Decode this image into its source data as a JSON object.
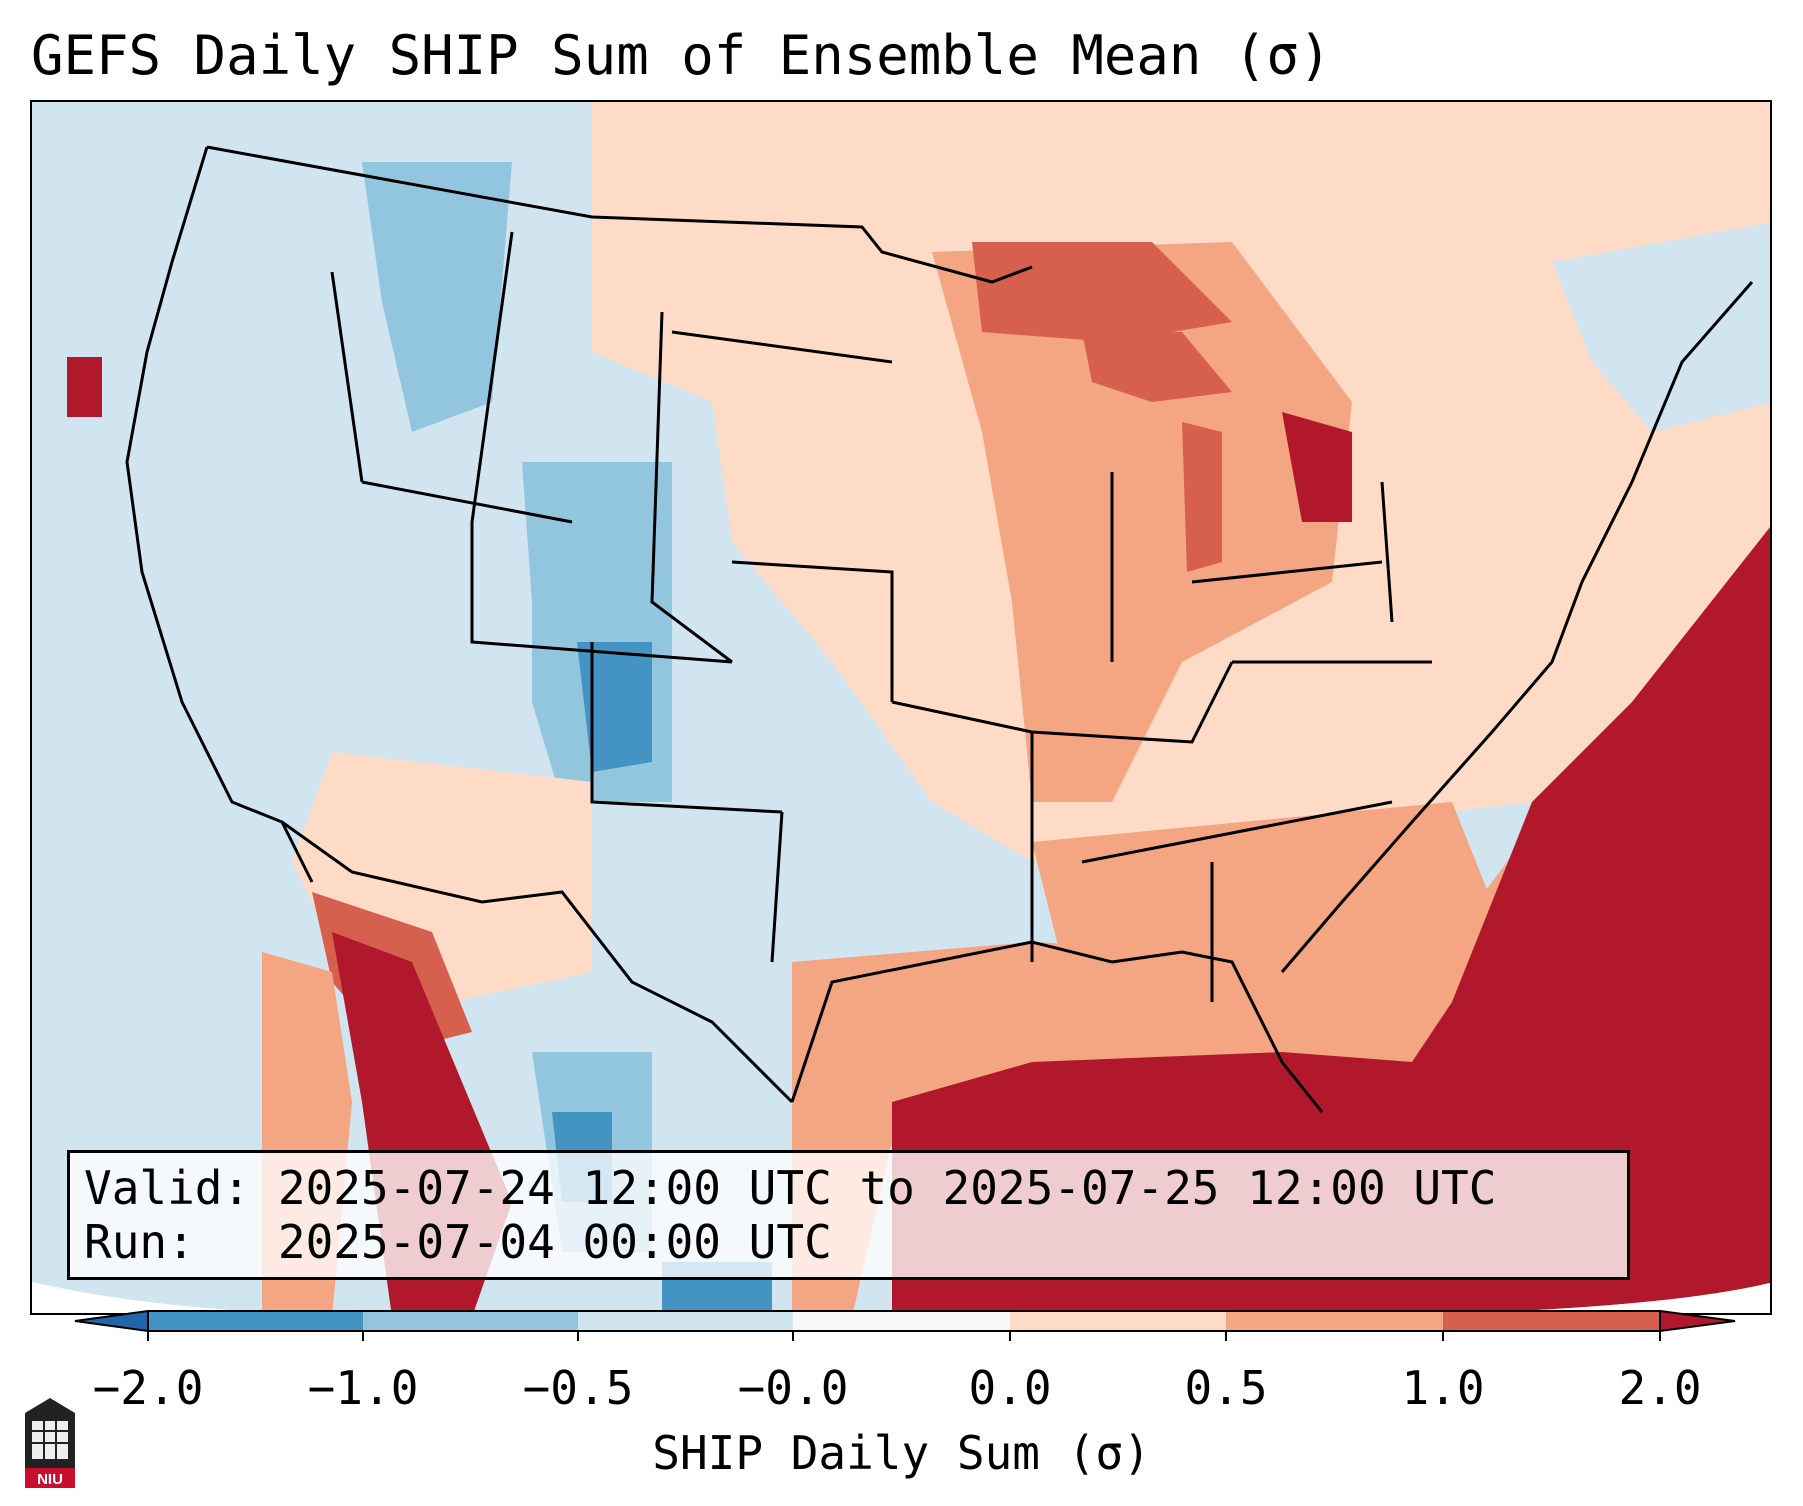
{
  "title": "GEFS Daily SHIP Sum of Ensemble Mean (σ)",
  "info": {
    "valid_label": "Valid:",
    "valid_value": "2025-07-24 12:00 UTC to 2025-07-25 12:00 UTC",
    "run_label": "Run:",
    "run_value": "2025-07-04 00:00 UTC"
  },
  "colorbar": {
    "label": "SHIP Daily Sum (σ)",
    "ticks": [
      "−2.0",
      "−1.0",
      "−0.5",
      "−0.0",
      "0.0",
      "0.5",
      "1.0",
      "2.0"
    ],
    "bins": [
      {
        "range": "< -2.0",
        "color": "#2166ac"
      },
      {
        "range": "-2.0 to -1.0",
        "color": "#4393c3"
      },
      {
        "range": "-1.0 to -0.5",
        "color": "#92c5de"
      },
      {
        "range": "-0.5 to -0.0",
        "color": "#d1e5f0"
      },
      {
        "range": "-0.0 to 0.0",
        "color": "#f7f7f7"
      },
      {
        "range": "0.0 to 0.5",
        "color": "#fddbc7"
      },
      {
        "range": "0.5 to 1.0",
        "color": "#f4a582"
      },
      {
        "range": "1.0 to 2.0",
        "color": "#d6604d"
      },
      {
        "range": "> 2.0",
        "color": "#b2182b"
      }
    ]
  },
  "logo": {
    "text": "NIU",
    "name": "niu-logo"
  },
  "colors": {
    "ocean_background": "#d1e5f0",
    "outside_projection": "#ffffff",
    "border_lines": "#000000"
  }
}
